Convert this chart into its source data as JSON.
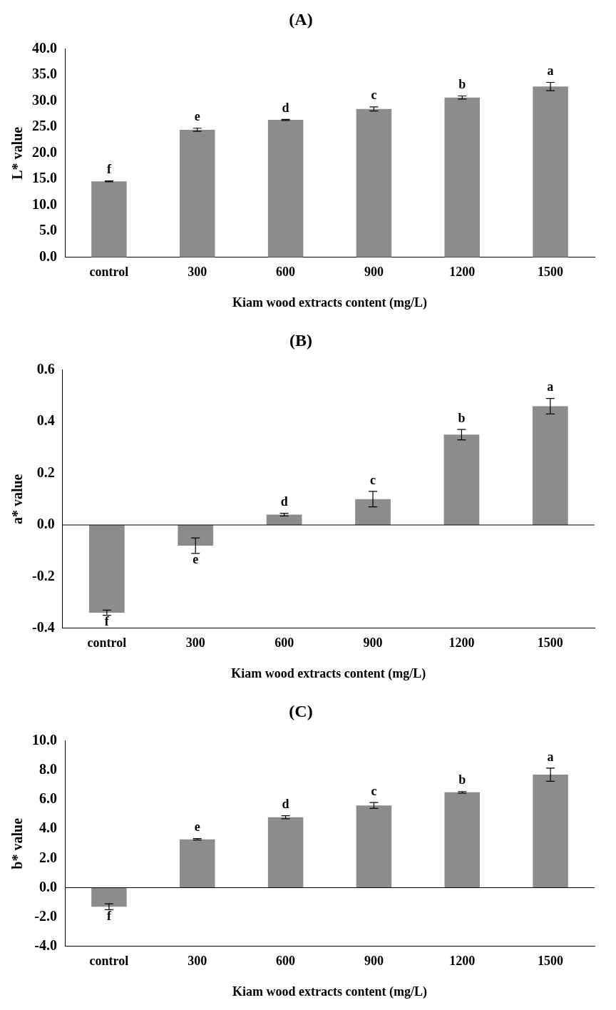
{
  "chart_data": [
    {
      "type": "bar",
      "title": "(A)",
      "xlabel": "Kiam wood extracts content (mg/L)",
      "ylabel": "L* value",
      "categories": [
        "control",
        "300",
        "600",
        "900",
        "1200",
        "1500"
      ],
      "values": [
        14.6,
        24.5,
        26.4,
        28.5,
        30.7,
        32.8
      ],
      "errors": [
        0.1,
        0.3,
        0.1,
        0.4,
        0.3,
        0.8
      ],
      "color": "#8c8c8c",
      "ylim": [
        0,
        40
      ],
      "yticks": [
        {
          "value": 0,
          "label": "0.0"
        },
        {
          "value": 5,
          "label": "5.0"
        },
        {
          "value": 10,
          "label": "10.0"
        },
        {
          "value": 15,
          "label": "15.0"
        },
        {
          "value": 20,
          "label": "20.0"
        },
        {
          "value": 25,
          "label": "25.0"
        },
        {
          "value": 30,
          "label": "30.0"
        },
        {
          "value": 35,
          "label": "35.0"
        },
        {
          "value": 40,
          "label": "40.0"
        }
      ],
      "annotations": [
        {
          "text": "f",
          "x": "control",
          "y": 14.6
        },
        {
          "text": "e",
          "x": "300",
          "y": 24.5
        },
        {
          "text": "d",
          "x": "600",
          "y": 26.4
        },
        {
          "text": "c",
          "x": "900",
          "y": 28.5
        },
        {
          "text": "b",
          "x": "1200",
          "y": 30.7
        },
        {
          "text": "a",
          "x": "1500",
          "y": 32.8
        }
      ]
    },
    {
      "type": "bar",
      "title": "(B)",
      "xlabel": "Kiam wood extracts content (mg/L)",
      "ylabel": "a* value",
      "categories": [
        "control",
        "300",
        "600",
        "900",
        "1200",
        "1500"
      ],
      "values": [
        -0.34,
        -0.08,
        0.04,
        0.1,
        0.35,
        0.46
      ],
      "errors": [
        0.01,
        0.03,
        0.005,
        0.03,
        0.02,
        0.03
      ],
      "color": "#8c8c8c",
      "ylim": [
        -0.4,
        0.6
      ],
      "yticks": [
        {
          "value": -0.4,
          "label": "-0.4"
        },
        {
          "value": -0.2,
          "label": "-0.2"
        },
        {
          "value": 0,
          "label": "0.0"
        },
        {
          "value": 0.2,
          "label": "0.2"
        },
        {
          "value": 0.4,
          "label": "0.4"
        },
        {
          "value": 0.6,
          "label": "0.6"
        }
      ],
      "annotations": [
        {
          "text": "f",
          "x": "control",
          "y": -0.34
        },
        {
          "text": "e",
          "x": "300",
          "y": -0.08
        },
        {
          "text": "d",
          "x": "600",
          "y": 0.04
        },
        {
          "text": "c",
          "x": "900",
          "y": 0.1
        },
        {
          "text": "b",
          "x": "1200",
          "y": 0.35
        },
        {
          "text": "a",
          "x": "1500",
          "y": 0.46
        }
      ]
    },
    {
      "type": "bar",
      "title": "(C)",
      "xlabel": "Kiam wood extracts content (mg/L)",
      "ylabel": "b* value",
      "categories": [
        "control",
        "300",
        "600",
        "900",
        "1200",
        "1500"
      ],
      "values": [
        -1.3,
        3.3,
        4.8,
        5.6,
        6.5,
        7.7
      ],
      "errors": [
        0.2,
        0.05,
        0.1,
        0.2,
        0.05,
        0.45
      ],
      "color": "#8c8c8c",
      "ylim": [
        -4,
        10
      ],
      "yticks": [
        {
          "value": -4,
          "label": "-4.0"
        },
        {
          "value": -2,
          "label": "-2.0"
        },
        {
          "value": 0,
          "label": "0.0"
        },
        {
          "value": 2,
          "label": "2.0"
        },
        {
          "value": 4,
          "label": "4.0"
        },
        {
          "value": 6,
          "label": "6.0"
        },
        {
          "value": 8,
          "label": "8.0"
        },
        {
          "value": 10,
          "label": "10.0"
        }
      ],
      "annotations": [
        {
          "text": "f",
          "x": "control",
          "y": -1.3
        },
        {
          "text": "e",
          "x": "300",
          "y": 3.3
        },
        {
          "text": "d",
          "x": "600",
          "y": 4.8
        },
        {
          "text": "c",
          "x": "900",
          "y": 5.6
        },
        {
          "text": "b",
          "x": "1200",
          "y": 6.5
        },
        {
          "text": "a",
          "x": "1500",
          "y": 7.7
        }
      ]
    }
  ]
}
